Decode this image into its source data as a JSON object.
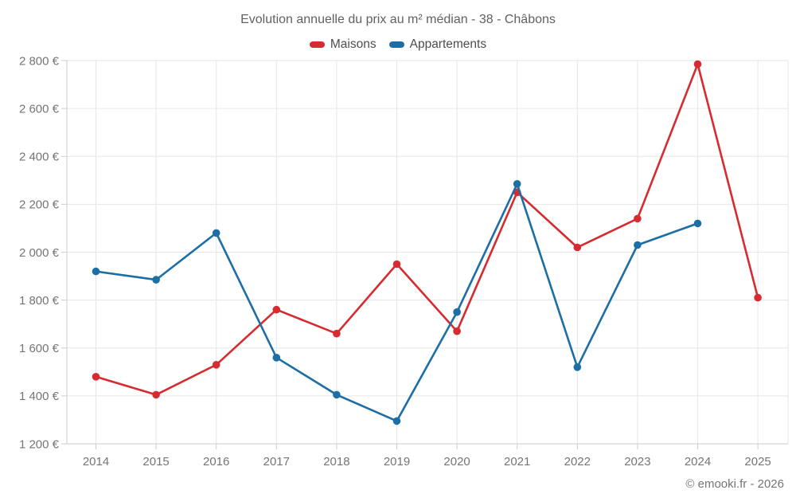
{
  "header": {
    "title": "Evolution annuelle du prix au m² médian - 38 - Châbons"
  },
  "legend": {
    "items": [
      {
        "label": "Maisons",
        "color": "#d62b30"
      },
      {
        "label": "Appartements",
        "color": "#1c6ea4"
      }
    ]
  },
  "footer": {
    "credit": "© emooki.fr - 2026"
  },
  "chart_data": {
    "type": "line",
    "title": "Evolution annuelle du prix au m² médian - 38 - Châbons",
    "categories": [
      "2014",
      "2015",
      "2016",
      "2017",
      "2018",
      "2019",
      "2020",
      "2021",
      "2022",
      "2023",
      "2024",
      "2025"
    ],
    "series": [
      {
        "name": "Maisons",
        "color": "#d62b30",
        "values": [
          1480,
          1405,
          1530,
          1760,
          1660,
          1950,
          1670,
          2250,
          2020,
          2140,
          2785,
          1810
        ]
      },
      {
        "name": "Appartements",
        "color": "#1c6ea4",
        "values": [
          1920,
          1885,
          2080,
          1560,
          1405,
          1295,
          1750,
          2285,
          1520,
          2030,
          2120,
          null
        ]
      }
    ],
    "xlabel": "",
    "ylabel": "",
    "ylim": [
      1200,
      2800
    ],
    "yticks": [
      {
        "value": 1200,
        "label": "1 200 €"
      },
      {
        "value": 1400,
        "label": "1 400 €"
      },
      {
        "value": 1600,
        "label": "1 600 €"
      },
      {
        "value": 1800,
        "label": "1 800 €"
      },
      {
        "value": 2000,
        "label": "2 000 €"
      },
      {
        "value": 2200,
        "label": "2 200 €"
      },
      {
        "value": 2400,
        "label": "2 400 €"
      },
      {
        "value": 2600,
        "label": "2 600 €"
      },
      {
        "value": 2800,
        "label": "2 800 €"
      }
    ],
    "grid": true,
    "legend_position": "top",
    "marker_radius": 4.8,
    "line_width": 2.6
  }
}
